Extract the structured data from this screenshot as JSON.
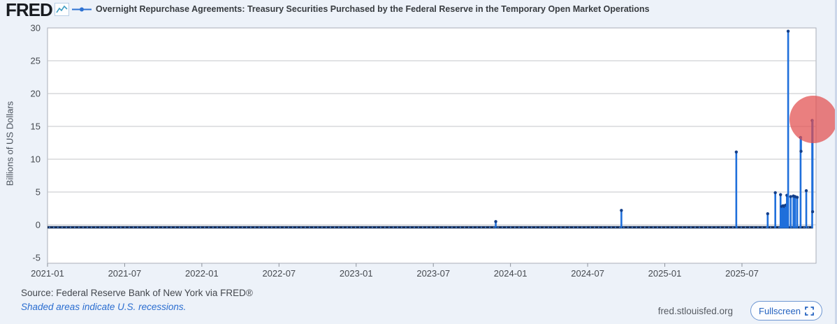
{
  "header": {
    "logo_text": "FRED",
    "legend_label": "Overnight Repurchase Agreements: Treasury Securities Purchased by the Federal Reserve in the Temporary Open Market Operations"
  },
  "footer": {
    "source": "Source: Federal Reserve Bank of New York via FRED®",
    "recessions_note": "Shaded areas indicate U.S. recessions.",
    "site_url": "fred.stlouisfed.org",
    "fullscreen_label": "Fullscreen"
  },
  "colors": {
    "background": "#edf2f9",
    "plot_background": "#ffffff",
    "plot_border": "#a9aeb8",
    "gridline": "#c3c5ca",
    "series_blue": "#1f6fdb",
    "baseline_navy": "#16305c",
    "baseline_dot_blue": "#578fdd",
    "marker_navy": "#133f8a",
    "axis_text": "#45494f",
    "link_blue": "#2a6dd0",
    "highlight_red": "#e24d4d",
    "highlight_opacity": 0.72
  },
  "chart_data": {
    "type": "line",
    "title": "Overnight Repurchase Agreements: Treasury Securities Purchased by the Federal Reserve in the Temporary Open Market Operations",
    "ylabel": "Billions of US Dollars",
    "ylim": [
      -5,
      30
    ],
    "yticks": [
      30,
      25,
      20,
      15,
      10,
      5,
      0,
      -5
    ],
    "xticks": [
      "2021-01",
      "2021-07",
      "2022-01",
      "2022-07",
      "2023-01",
      "2023-07",
      "2024-01",
      "2024-07",
      "2025-01",
      "2025-07"
    ],
    "x_range": [
      "2021-01-04",
      "2025-12-17"
    ],
    "grid": true,
    "legend_position": "top",
    "baseline_value": 0,
    "series": [
      {
        "name": "Overnight Repurchase Agreements: Treasury Securities Purchased by the Federal Reserve in the Temporary Open Market Operations",
        "baseline": 0,
        "spikes": [
          {
            "date": "2023-11-27",
            "value": 0.5
          },
          {
            "date": "2024-09-20",
            "value": 2.2
          },
          {
            "date": "2025-06-18",
            "value": 11.1
          },
          {
            "date": "2025-09-01",
            "value": 1.7
          },
          {
            "date": "2025-09-19",
            "value": 4.9
          },
          {
            "date": "2025-10-01",
            "value": 4.6
          },
          {
            "date": "2025-10-04",
            "value": 2.8
          },
          {
            "date": "2025-10-07",
            "value": 2.9
          },
          {
            "date": "2025-10-10",
            "value": 2.8
          },
          {
            "date": "2025-10-13",
            "value": 3.0
          },
          {
            "date": "2025-10-16",
            "value": 4.5
          },
          {
            "date": "2025-10-19",
            "value": 29.5
          },
          {
            "date": "2025-10-25",
            "value": 4.3
          },
          {
            "date": "2025-11-01",
            "value": 4.4
          },
          {
            "date": "2025-11-05",
            "value": 4.3
          },
          {
            "date": "2025-11-10",
            "value": 4.2
          },
          {
            "date": "2025-11-18",
            "value": 13.3
          },
          {
            "date": "2025-11-19",
            "value": 11.2,
            "link_prev": true
          },
          {
            "date": "2025-12-01",
            "value": 5.2
          },
          {
            "date": "2025-12-15",
            "value": 15.9
          },
          {
            "date": "2025-12-16",
            "value": 2.0,
            "link_prev": true
          }
        ]
      }
    ]
  }
}
